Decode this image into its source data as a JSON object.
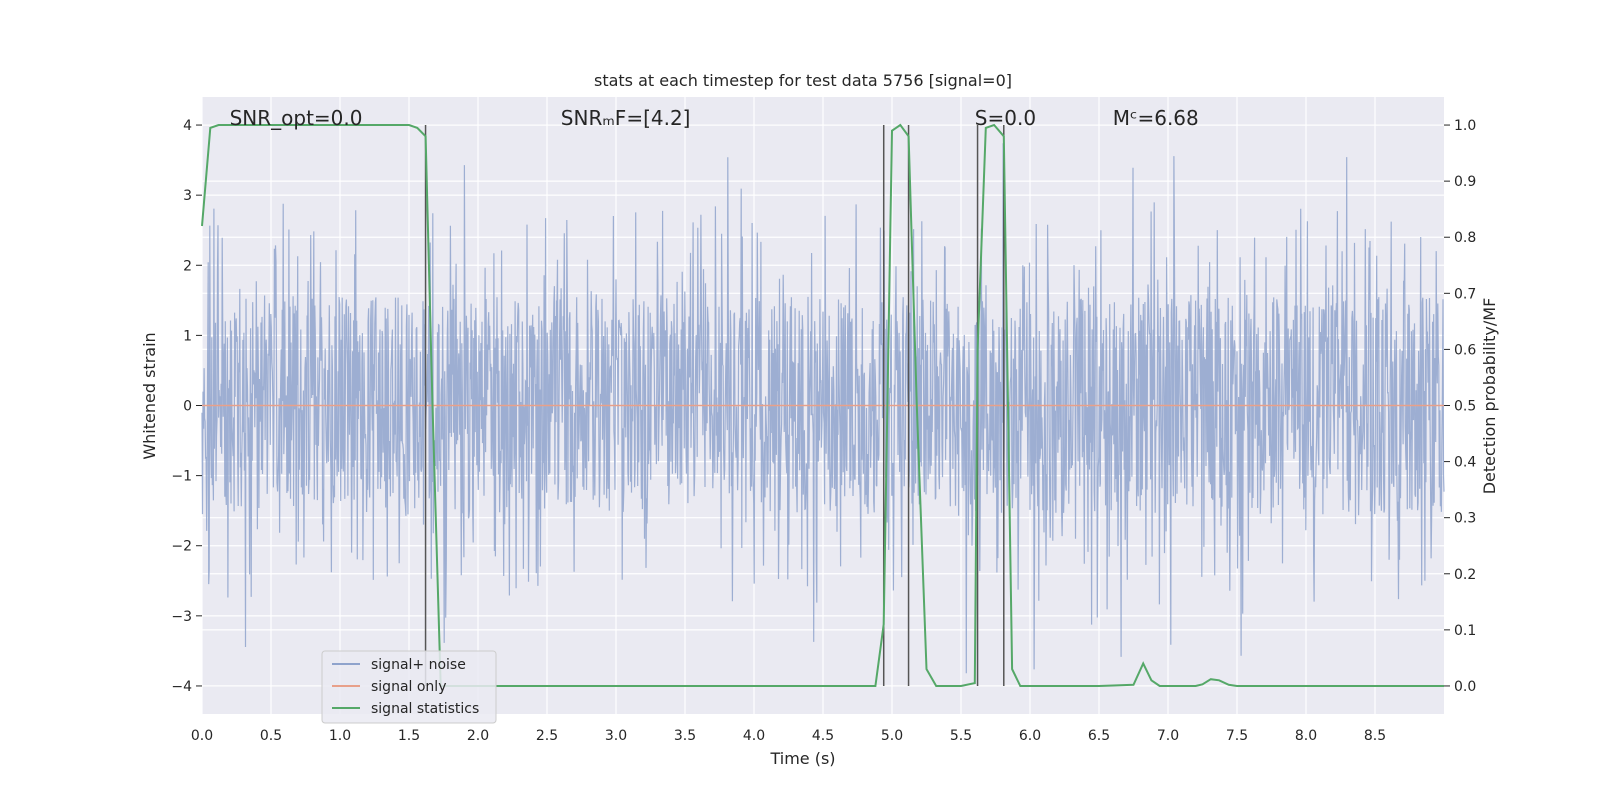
{
  "chart_data": {
    "type": "line",
    "title": "stats at each timestep for test data 5756 [signal=0]",
    "xlabel": "Time (s)",
    "ylabel_left": "Whitened strain",
    "ylabel_right": "Detection probability/MF",
    "xlim": [
      0,
      9
    ],
    "ylim_left": [
      -4.4,
      4.4
    ],
    "ylim_right": [
      -0.05,
      1.05
    ],
    "x_ticks": [
      0.0,
      0.5,
      1.0,
      1.5,
      2.0,
      2.5,
      3.0,
      3.5,
      4.0,
      4.5,
      5.0,
      5.5,
      6.0,
      6.5,
      7.0,
      7.5,
      8.0,
      8.5
    ],
    "x_tick_labels": [
      "0.0",
      "0.5",
      "1.0",
      "1.5",
      "2.0",
      "2.5",
      "3.0",
      "3.5",
      "4.0",
      "4.5",
      "5.0",
      "5.5",
      "6.0",
      "6.5",
      "7.0",
      "7.5",
      "8.0",
      "8.5"
    ],
    "y_left_ticks": [
      -4,
      -3,
      -2,
      -1,
      0,
      1,
      2,
      3,
      4
    ],
    "y_left_tick_labels": [
      "−4",
      "−3",
      "−2",
      "−1",
      "0",
      "1",
      "2",
      "3",
      "4"
    ],
    "y_right_ticks": [
      0.0,
      0.1,
      0.2,
      0.3,
      0.4,
      0.5,
      0.6,
      0.7,
      0.8,
      0.9,
      1.0
    ],
    "y_right_tick_labels": [
      "0.0",
      "0.1",
      "0.2",
      "0.3",
      "0.4",
      "0.5",
      "0.6",
      "0.7",
      "0.8",
      "0.9",
      "1.0"
    ],
    "grid": true,
    "annotations": [
      {
        "id": "snr-opt",
        "text": "SNR_opt=0.0",
        "x": 0.2
      },
      {
        "id": "snr-mf",
        "text": "SNRₘF=[4.2]",
        "x": 2.6
      },
      {
        "id": "s-value",
        "text": "S=0.0",
        "x": 5.6
      },
      {
        "id": "mc-value",
        "text": "Mᶜ=6.68",
        "x": 6.6
      }
    ],
    "vertical_lines_x": [
      1.62,
      4.94,
      5.12,
      5.62,
      5.81
    ],
    "series": [
      {
        "name": "signal+ noise",
        "color": "#8fa3cc",
        "axis": "left",
        "description": "dense noise trace, roughly ±1.5 with spikes to about ±3.9",
        "amplitude_core": 1.55,
        "amplitude_peak": 3.9
      },
      {
        "name": "signal only",
        "color": "#e8a08a",
        "axis": "left",
        "x": [
          0,
          9
        ],
        "y": [
          0,
          0
        ]
      },
      {
        "name": "signal statistics",
        "color": "#55a868",
        "axis": "right",
        "x": [
          0.0,
          0.06,
          0.12,
          0.2,
          0.5,
          1.0,
          1.5,
          1.56,
          1.62,
          1.67,
          1.73,
          1.78,
          2.5,
          3.5,
          4.5,
          4.88,
          4.94,
          5.0,
          5.06,
          5.12,
          5.18,
          5.25,
          5.32,
          5.5,
          5.6,
          5.62,
          5.68,
          5.74,
          5.81,
          5.87,
          5.93,
          6.0,
          6.5,
          6.75,
          6.82,
          6.88,
          6.94,
          7.0,
          7.2,
          7.25,
          7.31,
          7.37,
          7.44,
          7.5,
          8.0,
          9.0
        ],
        "y": [
          0.82,
          0.995,
          1.0,
          1.0,
          1.0,
          1.0,
          1.0,
          0.995,
          0.98,
          0.5,
          0.0,
          0.0,
          0.0,
          0.0,
          0.0,
          0.0,
          0.11,
          0.99,
          1.0,
          0.98,
          0.5,
          0.03,
          0.0,
          0.0,
          0.005,
          0.6,
          0.995,
          1.0,
          0.98,
          0.03,
          0.0,
          0.0,
          0.0,
          0.002,
          0.04,
          0.01,
          0.0,
          0.0,
          0.0,
          0.003,
          0.012,
          0.01,
          0.002,
          0.0,
          0.0,
          0.0
        ]
      }
    ],
    "legend": {
      "placement": "lower-left",
      "entries": [
        "signal+ noise",
        "signal only",
        "signal statistics"
      ]
    }
  }
}
